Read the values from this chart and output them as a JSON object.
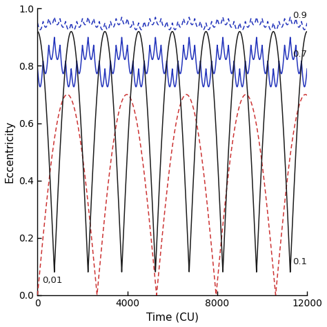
{
  "xlim": [
    0,
    12000
  ],
  "ylim": [
    0,
    1.0
  ],
  "xlabel": "Time (CU)",
  "ylabel": "Eccentricity",
  "xticks": [
    0,
    4000,
    8000,
    12000
  ],
  "yticks": [
    0,
    0.2,
    0.4,
    0.6,
    0.8,
    1.0
  ],
  "label_01": "0.1",
  "label_001": "0,01",
  "label_07": "0.7",
  "label_09": "0.9",
  "color_black": "#1a1a1a",
  "color_red": "#cc3333",
  "color_blue": "#2233bb",
  "figsize": [
    4.74,
    4.74
  ],
  "dpi": 100,
  "n_points": 10000,
  "t_max": 12000,
  "bg_color": "#ffffff"
}
